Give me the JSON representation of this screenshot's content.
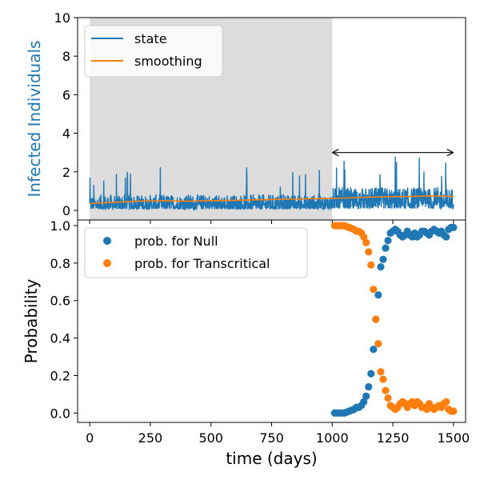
{
  "chart_data": [
    {
      "type": "line",
      "ylabel": "Infected Individuals",
      "ylabel_color": "#1f77b4",
      "xlim": [
        -50,
        1550
      ],
      "ylim": [
        -0.5,
        10
      ],
      "y_ticks": [
        0,
        2,
        4,
        6,
        8,
        10
      ],
      "y_tick_labels": [
        "0",
        "2",
        "4",
        "6",
        "8",
        "10"
      ],
      "shaded_region": {
        "x": [
          0,
          1000
        ],
        "color": "#dcdcdc"
      },
      "arrow": {
        "x": [
          1000,
          1500
        ],
        "y": 3.0,
        "style": "double-headed"
      },
      "legend": {
        "placement": "top-left",
        "entries": [
          "state",
          "smoothing"
        ]
      },
      "series": [
        {
          "name": "state",
          "color": "#1f77b4",
          "note_values": "noisy daily series; values approximated by segment mean/spread",
          "segments": [
            {
              "x": [
                0,
                1000
              ],
              "mean": 0.45,
              "max": 2.3
            },
            {
              "x": [
                1000,
                1500
              ],
              "mean": 0.65,
              "max": 3.1
            }
          ]
        },
        {
          "name": "smoothing",
          "color": "#ff7f0e",
          "x": [
            0,
            100,
            200,
            300,
            400,
            500,
            600,
            700,
            800,
            900,
            1000,
            1100,
            1200,
            1300,
            1400,
            1500
          ],
          "y": [
            0.35,
            0.42,
            0.48,
            0.5,
            0.47,
            0.5,
            0.52,
            0.55,
            0.58,
            0.6,
            0.62,
            0.66,
            0.7,
            0.72,
            0.74,
            0.72
          ]
        }
      ]
    },
    {
      "type": "scatter",
      "xlabel": "time (days)",
      "ylabel": "Probability",
      "xlim": [
        -50,
        1550
      ],
      "ylim": [
        -0.05,
        1.03
      ],
      "x_ticks": [
        0,
        250,
        500,
        750,
        1000,
        1250,
        1500
      ],
      "x_tick_labels": [
        "0",
        "250",
        "500",
        "750",
        "1000",
        "1250",
        "1500"
      ],
      "y_ticks": [
        0.0,
        0.2,
        0.4,
        0.6,
        0.8,
        1.0
      ],
      "y_tick_labels": [
        "0.0",
        "0.2",
        "0.4",
        "0.6",
        "0.8",
        "1.0"
      ],
      "legend": {
        "placement": "top-left",
        "entries": [
          "prob. for Null",
          "prob. for Transcritical"
        ]
      },
      "x": [
        1010,
        1020,
        1030,
        1040,
        1050,
        1060,
        1070,
        1080,
        1090,
        1100,
        1110,
        1120,
        1130,
        1140,
        1150,
        1160,
        1170,
        1180,
        1190,
        1200,
        1210,
        1220,
        1230,
        1240,
        1250,
        1260,
        1270,
        1280,
        1290,
        1300,
        1310,
        1320,
        1330,
        1340,
        1350,
        1360,
        1370,
        1380,
        1390,
        1400,
        1410,
        1420,
        1430,
        1440,
        1450,
        1460,
        1470,
        1480,
        1490,
        1500
      ],
      "series": [
        {
          "name": "prob. for Null",
          "color": "#1f77b4",
          "values": [
            0.0,
            0.0,
            0.0,
            0.0,
            0.0,
            0.005,
            0.01,
            0.015,
            0.02,
            0.03,
            0.03,
            0.04,
            0.06,
            0.09,
            0.14,
            0.21,
            0.34,
            0.5,
            0.63,
            0.78,
            0.82,
            0.88,
            0.92,
            0.96,
            0.97,
            0.98,
            0.97,
            0.95,
            0.94,
            0.95,
            0.97,
            0.95,
            0.94,
            0.96,
            0.94,
            0.95,
            0.97,
            0.97,
            0.96,
            0.95,
            0.97,
            0.98,
            0.97,
            0.96,
            0.97,
            0.95,
            0.94,
            0.98,
            0.99,
            0.99
          ]
        },
        {
          "name": "prob. for Transcritical",
          "color": "#ff7f0e",
          "values": [
            1.0,
            1.0,
            1.0,
            1.0,
            1.0,
            0.995,
            0.99,
            0.985,
            0.98,
            0.97,
            0.97,
            0.96,
            0.94,
            0.91,
            0.86,
            0.79,
            0.66,
            0.5,
            0.37,
            0.22,
            0.18,
            0.12,
            0.08,
            0.04,
            0.03,
            0.02,
            0.03,
            0.05,
            0.06,
            0.05,
            0.03,
            0.05,
            0.06,
            0.04,
            0.06,
            0.05,
            0.03,
            0.03,
            0.02,
            0.05,
            0.03,
            0.02,
            0.03,
            0.04,
            0.03,
            0.05,
            0.06,
            0.02,
            0.01,
            0.01
          ]
        }
      ]
    }
  ]
}
